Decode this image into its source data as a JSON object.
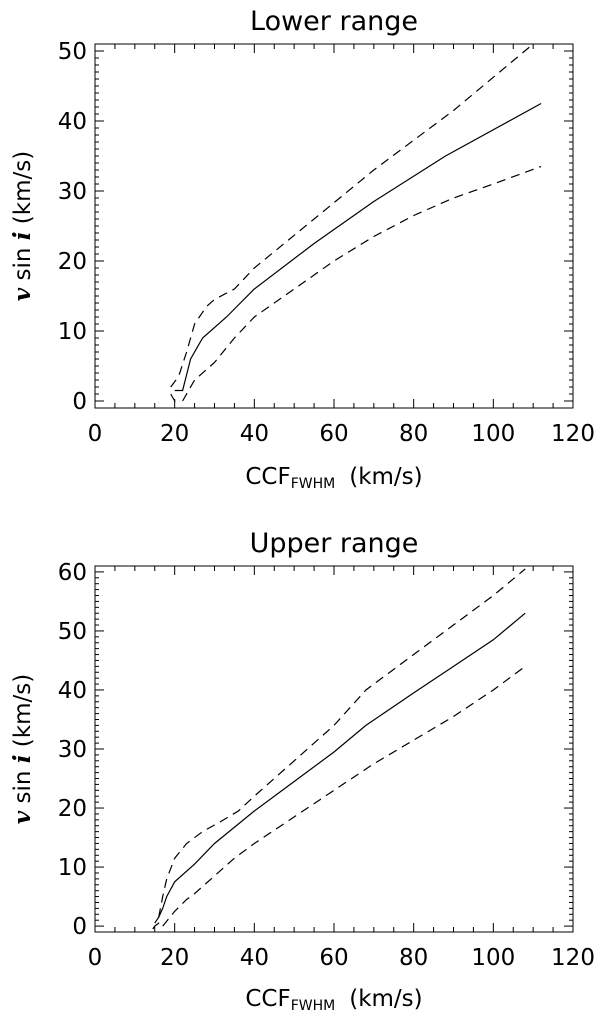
{
  "chart_data": [
    {
      "type": "line",
      "title": "Lower range",
      "xlabel": "CCF",
      "xlabel_sub": "FWHM",
      "xlabel_unit": "(km/s)",
      "ylabel_v": "v",
      "ylabel_mid": " sin ",
      "ylabel_i": "i",
      "ylabel_unit": " (km/s)",
      "xlim": [
        0,
        120
      ],
      "ylim": [
        -1,
        51
      ],
      "xticks": [
        0,
        20,
        40,
        60,
        80,
        100,
        120
      ],
      "yticks": [
        0,
        10,
        20,
        30,
        40,
        50
      ],
      "grid": false,
      "series": [
        {
          "style": "solid",
          "x": [
            20,
            22,
            24,
            27,
            33,
            40,
            55,
            70,
            88,
            112
          ],
          "y": [
            1.5,
            1.5,
            6,
            9,
            12,
            16,
            22.5,
            28.5,
            35,
            42.5
          ]
        },
        {
          "style": "dashed",
          "x": [
            19,
            21,
            23,
            25,
            28,
            30,
            35,
            40,
            55,
            70,
            90,
            110
          ],
          "y": [
            2,
            3.5,
            7,
            11,
            13.5,
            14.5,
            16,
            19,
            26,
            33,
            41.5,
            51
          ]
        },
        {
          "style": "dashed",
          "x": [
            22,
            25,
            30,
            35,
            40,
            50,
            60,
            70,
            80,
            90,
            100,
            112
          ],
          "y": [
            0,
            3,
            5.5,
            9,
            12,
            16,
            20,
            23.5,
            26.5,
            29,
            31,
            33.5
          ]
        },
        {
          "style": "dashed",
          "x": [
            19,
            20,
            20.5
          ],
          "y": [
            1,
            0,
            -1
          ]
        }
      ]
    },
    {
      "type": "line",
      "title": "Upper range",
      "xlabel": "CCF",
      "xlabel_sub": "FWHM",
      "xlabel_unit": "(km/s)",
      "ylabel_v": "v",
      "ylabel_mid": " sin ",
      "ylabel_i": "i",
      "ylabel_unit": " (km/s)",
      "xlim": [
        0,
        120
      ],
      "ylim": [
        -1,
        61
      ],
      "xticks": [
        0,
        20,
        40,
        60,
        80,
        100,
        120
      ],
      "yticks": [
        0,
        10,
        20,
        30,
        40,
        50,
        60
      ],
      "grid": false,
      "series": [
        {
          "style": "solid",
          "x": [
            15,
            16,
            17,
            18,
            20,
            25,
            30,
            40,
            50,
            60,
            68,
            80,
            90,
            100,
            108
          ],
          "y": [
            0.5,
            1.5,
            3,
            5,
            7.5,
            10.5,
            14,
            19.5,
            24.5,
            29.5,
            34,
            39.5,
            44,
            48.5,
            53
          ]
        },
        {
          "style": "dashed",
          "x": [
            16,
            17,
            18,
            20,
            23,
            27,
            31,
            36,
            40,
            50,
            60,
            68,
            80,
            90,
            100,
            108
          ],
          "y": [
            1.5,
            5,
            8,
            11.5,
            14,
            16,
            17.5,
            19.5,
            22,
            28,
            34,
            40,
            46,
            51,
            56,
            60.5
          ]
        },
        {
          "style": "dashed",
          "x": [
            17,
            20,
            23,
            25,
            30,
            35,
            40,
            50,
            60,
            70,
            80,
            90,
            100,
            108
          ],
          "y": [
            0,
            2.5,
            4.5,
            5.5,
            8.5,
            11.5,
            14,
            18.5,
            23,
            27.5,
            31.5,
            35.5,
            40,
            44
          ]
        },
        {
          "style": "dashed",
          "x": [
            14.5,
            15,
            16,
            16.5
          ],
          "y": [
            -0.5,
            0,
            0.5,
            1
          ]
        }
      ]
    }
  ]
}
